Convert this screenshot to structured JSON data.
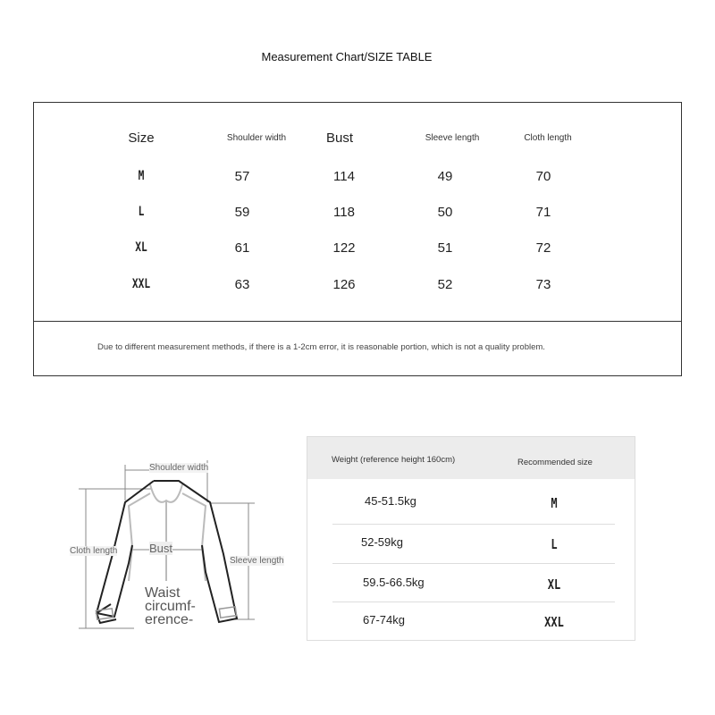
{
  "title": "Measurement Chart/SIZE TABLE",
  "size_table": {
    "headers": [
      "Size",
      "Shoulder width",
      "Bust",
      "Sleeve length",
      "Cloth length"
    ],
    "rows": [
      [
        "M",
        "57",
        "114",
        "49",
        "70"
      ],
      [
        "L",
        "59",
        "118",
        "50",
        "71"
      ],
      [
        "XL",
        "61",
        "122",
        "51",
        "72"
      ],
      [
        "XXL",
        "63",
        "126",
        "52",
        "73"
      ]
    ],
    "note": "Due to different measurement methods, if there is a 1-2cm error, it is reasonable portion, which is not a quality problem."
  },
  "diagram": {
    "labels": {
      "shoulder": "Shoulder width",
      "cloth": "Cloth length",
      "bust": "Bust",
      "sleeve": "Sleeve length",
      "waist": [
        "Waist",
        "circumf-",
        "erence-"
      ]
    }
  },
  "weight_table": {
    "headers": [
      "Weight (reference height 160cm)",
      "Recommended size"
    ],
    "rows": [
      [
        "45-51.5kg",
        "M"
      ],
      [
        "52-59kg",
        "L"
      ],
      [
        "59.5-66.5kg",
        "XL"
      ],
      [
        "67-74kg",
        "XXL"
      ]
    ]
  }
}
